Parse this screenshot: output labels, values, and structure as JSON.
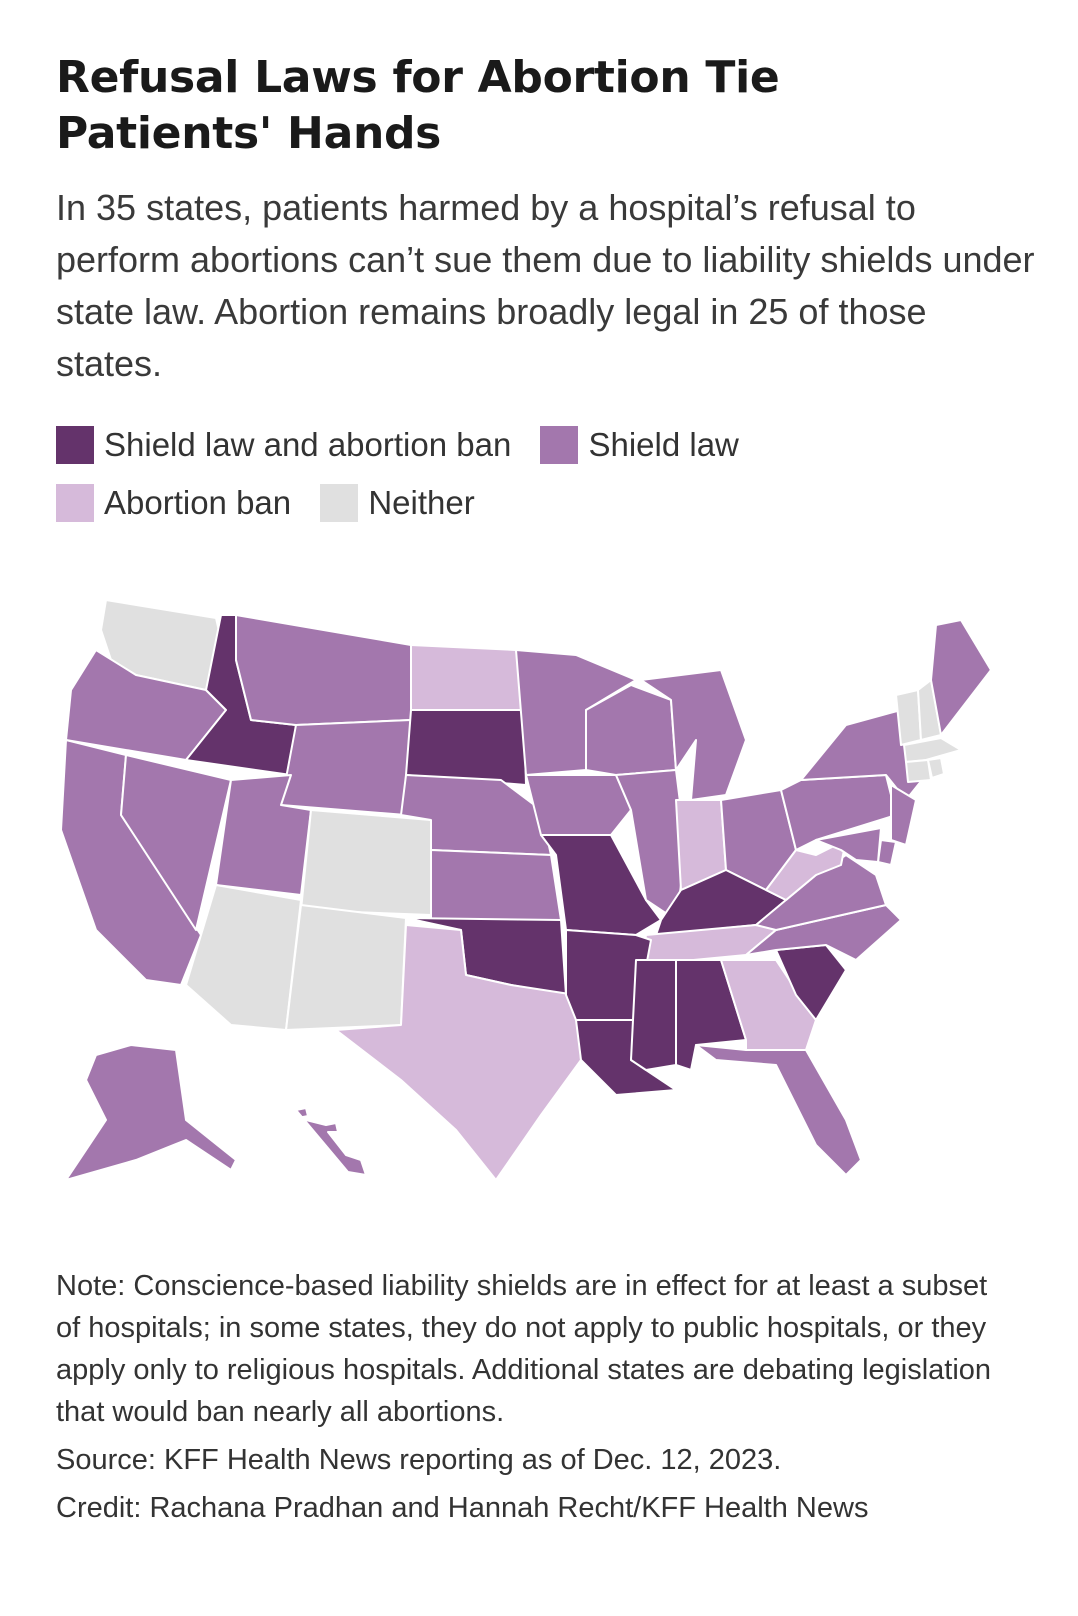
{
  "title": "Refusal Laws for Abortion Tie Patients' Hands",
  "subtitle": "In 35 states, patients harmed by a hospital’s refusal to perform abortions can’t sue them due to liability shields under state law. Abortion remains broadly legal in 25 of those states.",
  "legend": [
    {
      "label": "Shield law and abortion ban",
      "color": "#64336b"
    },
    {
      "label": "Shield law",
      "color": "#a377ad"
    },
    {
      "label": "Abortion ban",
      "color": "#d6bada"
    },
    {
      "label": "Neither",
      "color": "#e0e0e0"
    }
  ],
  "map_data": {
    "categories": {
      "shield_and_ban": [
        "ID",
        "SD",
        "MO",
        "KY",
        "OK",
        "AR",
        "LA",
        "MS",
        "AL",
        "SC"
      ],
      "shield": [
        "OR",
        "CA",
        "NV",
        "MT",
        "WY",
        "UT",
        "NE",
        "KS",
        "MN",
        "IA",
        "WI",
        "IL",
        "MI",
        "OH",
        "PA",
        "NY",
        "NJ",
        "DE",
        "MD",
        "VA",
        "NC",
        "FL",
        "ME",
        "AK",
        "HI"
      ],
      "ban": [
        "ND",
        "IN",
        "WV",
        "TN",
        "GA",
        "TX"
      ],
      "neither": [
        "WA",
        "CO",
        "AZ",
        "NM",
        "VT",
        "NH",
        "MA",
        "CT",
        "RI"
      ]
    }
  },
  "note": "Note: Conscience-based liability shields are in effect for at least a subset of hospitals; in some states, they do not apply to public hospitals, or they apply only to religious hospitals. Additional states are debating legislation that would ban nearly all abortions.",
  "source": "Source: KFF Health News reporting as of Dec. 12, 2023.",
  "credit": "Credit: Rachana Pradhan and Hannah Recht/KFF Health News"
}
